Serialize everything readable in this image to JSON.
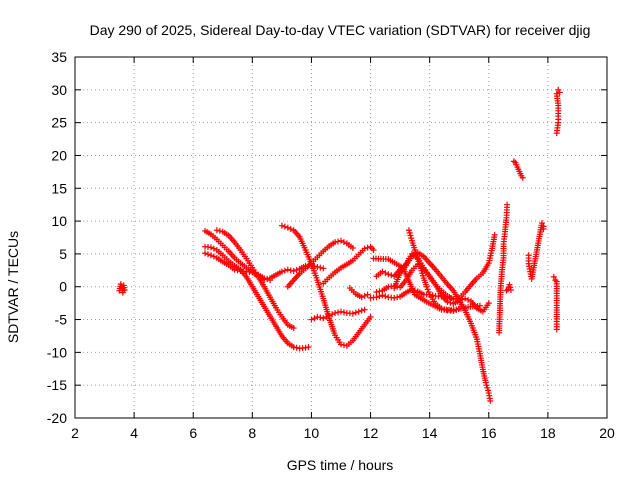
{
  "chart_data": {
    "type": "scatter",
    "title": "Day 290 of 2025, Sidereal Day-to-day VTEC variation (SDTVAR) for receiver djig",
    "xlabel": "GPS time / hours",
    "ylabel": "SDTVAR / TECUs",
    "xlim": [
      2,
      20
    ],
    "ylim": [
      -20,
      35
    ],
    "xticks": [
      2,
      4,
      6,
      8,
      10,
      12,
      14,
      16,
      18,
      20
    ],
    "yticks": [
      -20,
      -15,
      -10,
      -5,
      0,
      5,
      10,
      15,
      20,
      25,
      30,
      35
    ],
    "grid": true,
    "marker": "+",
    "color": "#ff0000",
    "series": [
      {
        "name": "s1",
        "points": [
          [
            3.5,
            -0.6
          ],
          [
            3.55,
            0.4
          ],
          [
            3.6,
            -0.3
          ],
          [
            3.62,
            -0.9
          ],
          [
            3.65,
            0.2
          ],
          [
            3.68,
            -0.5
          ]
        ]
      },
      {
        "name": "s2",
        "points": [
          [
            6.4,
            8.5
          ],
          [
            6.6,
            8.0
          ],
          [
            6.8,
            7.2
          ],
          [
            7.0,
            6.3
          ],
          [
            7.2,
            5.4
          ],
          [
            7.4,
            4.4
          ],
          [
            7.6,
            3.6
          ],
          [
            7.8,
            2.9
          ],
          [
            8.0,
            2.2
          ],
          [
            8.2,
            1.6
          ],
          [
            8.4,
            1.1
          ],
          [
            8.6,
            1.3
          ],
          [
            8.8,
            1.8
          ],
          [
            9.0,
            2.3
          ],
          [
            9.2,
            2.6
          ],
          [
            9.4,
            2.4
          ],
          [
            9.6,
            2.7
          ],
          [
            9.8,
            3.2
          ],
          [
            10.0,
            3.3
          ],
          [
            10.2,
            3.0
          ],
          [
            10.4,
            2.8
          ]
        ]
      },
      {
        "name": "s3",
        "points": [
          [
            6.4,
            5.1
          ],
          [
            6.6,
            4.8
          ],
          [
            6.8,
            4.4
          ],
          [
            7.0,
            3.8
          ],
          [
            7.2,
            3.3
          ],
          [
            7.4,
            2.6
          ],
          [
            7.6,
            2.4
          ],
          [
            7.8,
            2.3
          ],
          [
            8.0,
            2.2
          ],
          [
            8.2,
            1.8
          ],
          [
            8.4,
            1.3
          ],
          [
            8.6,
            1.0
          ]
        ]
      },
      {
        "name": "s4",
        "points": [
          [
            6.4,
            6.1
          ],
          [
            6.6,
            6.0
          ],
          [
            6.8,
            5.6
          ],
          [
            7.0,
            4.8
          ],
          [
            7.2,
            3.9
          ],
          [
            7.4,
            3.2
          ],
          [
            7.6,
            2.6
          ],
          [
            7.8,
            1.5
          ],
          [
            8.0,
            0.0
          ],
          [
            8.2,
            -1.5
          ],
          [
            8.4,
            -3.0
          ],
          [
            8.6,
            -4.5
          ],
          [
            8.8,
            -6.0
          ],
          [
            9.0,
            -7.5
          ],
          [
            9.2,
            -8.6
          ],
          [
            9.4,
            -9.2
          ],
          [
            9.6,
            -9.4
          ],
          [
            9.8,
            -9.3
          ],
          [
            9.9,
            -9.2
          ]
        ]
      },
      {
        "name": "s5",
        "points": [
          [
            6.8,
            8.6
          ],
          [
            7.0,
            8.4
          ],
          [
            7.2,
            7.8
          ],
          [
            7.4,
            6.8
          ],
          [
            7.6,
            5.6
          ],
          [
            7.8,
            4.3
          ],
          [
            8.0,
            2.9
          ],
          [
            8.2,
            1.5
          ],
          [
            8.4,
            0.0
          ],
          [
            8.6,
            -1.6
          ],
          [
            8.8,
            -3.2
          ],
          [
            9.0,
            -4.6
          ],
          [
            9.2,
            -5.8
          ],
          [
            9.4,
            -6.3
          ]
        ]
      },
      {
        "name": "s6",
        "points": [
          [
            9.0,
            9.3
          ],
          [
            9.2,
            9.0
          ],
          [
            9.4,
            8.6
          ],
          [
            9.6,
            7.6
          ],
          [
            9.8,
            5.6
          ],
          [
            10.0,
            3.5
          ],
          [
            10.2,
            1.0
          ],
          [
            10.4,
            -1.8
          ],
          [
            10.6,
            -4.8
          ],
          [
            10.8,
            -7.4
          ],
          [
            11.0,
            -8.8
          ],
          [
            11.2,
            -9.0
          ],
          [
            11.4,
            -8.2
          ],
          [
            11.6,
            -7.0
          ],
          [
            11.8,
            -5.8
          ],
          [
            12.0,
            -4.6
          ]
        ]
      },
      {
        "name": "s7",
        "points": [
          [
            9.2,
            0.0
          ],
          [
            9.4,
            1.0
          ],
          [
            9.6,
            2.0
          ],
          [
            9.8,
            2.8
          ],
          [
            10.0,
            3.6
          ],
          [
            10.2,
            4.5
          ],
          [
            10.4,
            5.4
          ],
          [
            10.6,
            6.2
          ],
          [
            10.8,
            6.8
          ],
          [
            11.0,
            7.0
          ],
          [
            11.2,
            6.6
          ],
          [
            11.4,
            5.9
          ]
        ]
      },
      {
        "name": "s8",
        "points": [
          [
            10.0,
            -5.0
          ],
          [
            10.2,
            -4.6
          ],
          [
            10.4,
            -4.8
          ],
          [
            10.6,
            -4.4
          ],
          [
            10.8,
            -4.0
          ],
          [
            11.0,
            -3.8
          ],
          [
            11.2,
            -4.0
          ],
          [
            11.4,
            -4.1
          ],
          [
            11.6,
            -3.8
          ],
          [
            11.8,
            -3.5
          ]
        ]
      },
      {
        "name": "s9",
        "points": [
          [
            10.4,
            0.5
          ],
          [
            10.6,
            1.4
          ],
          [
            10.8,
            2.2
          ],
          [
            11.0,
            2.9
          ],
          [
            11.2,
            3.4
          ],
          [
            11.4,
            4.0
          ],
          [
            11.6,
            4.9
          ],
          [
            11.8,
            5.8
          ],
          [
            12.0,
            6.1
          ],
          [
            12.1,
            5.6
          ]
        ]
      },
      {
        "name": "s10",
        "points": [
          [
            11.3,
            -0.2
          ],
          [
            11.5,
            -1.1
          ],
          [
            11.7,
            -1.6
          ],
          [
            11.9,
            -1.2
          ]
        ]
      },
      {
        "name": "s11",
        "points": [
          [
            12.0,
            -1.7
          ],
          [
            12.2,
            -1.6
          ],
          [
            12.4,
            -1.3
          ],
          [
            12.6,
            -1.6
          ],
          [
            12.8,
            -1.7
          ],
          [
            13.0,
            -1.5
          ],
          [
            13.2,
            -0.9
          ],
          [
            13.4,
            -0.4
          ],
          [
            13.6,
            -0.7
          ],
          [
            13.8,
            -1.2
          ],
          [
            14.0,
            -1.2
          ],
          [
            14.2,
            -1.4
          ],
          [
            14.4,
            -1.5
          ],
          [
            14.6,
            -1.6
          ],
          [
            14.8,
            -1.9
          ],
          [
            15.0,
            -1.7
          ],
          [
            15.2,
            -0.8
          ],
          [
            15.4,
            0.3
          ],
          [
            15.6,
            1.3
          ],
          [
            15.8,
            2.1
          ],
          [
            16.0,
            3.6
          ],
          [
            16.1,
            5.5
          ],
          [
            16.2,
            7.9
          ]
        ]
      },
      {
        "name": "s12",
        "points": [
          [
            12.2,
            1.6
          ],
          [
            12.4,
            2.3
          ],
          [
            12.6,
            1.9
          ],
          [
            12.8,
            1.6
          ],
          [
            13.0,
            2.6
          ],
          [
            13.2,
            3.4
          ],
          [
            13.4,
            4.6
          ],
          [
            13.6,
            5.2
          ],
          [
            13.8,
            4.6
          ],
          [
            14.0,
            3.6
          ],
          [
            14.2,
            2.6
          ],
          [
            14.4,
            1.5
          ],
          [
            14.6,
            0.4
          ],
          [
            14.8,
            -0.6
          ],
          [
            15.0,
            -2.1
          ],
          [
            15.2,
            -3.6
          ],
          [
            15.4,
            -5.6
          ],
          [
            15.6,
            -8.0
          ],
          [
            15.7,
            -10.2
          ],
          [
            15.8,
            -12.6
          ],
          [
            15.9,
            -14.6
          ],
          [
            16.0,
            -16.2
          ],
          [
            16.05,
            -17.4
          ]
        ]
      },
      {
        "name": "s13",
        "points": [
          [
            12.2,
            -0.8
          ],
          [
            12.4,
            -0.6
          ],
          [
            12.6,
            0.0
          ],
          [
            12.8,
            0.1
          ],
          [
            13.0,
            -0.1
          ],
          [
            13.2,
            1.0
          ],
          [
            13.4,
            2.5
          ],
          [
            13.6,
            3.4
          ],
          [
            13.8,
            2.7
          ],
          [
            14.0,
            1.6
          ],
          [
            14.2,
            0.3
          ],
          [
            14.4,
            -1.3
          ],
          [
            14.6,
            -2.3
          ],
          [
            14.8,
            -2.6
          ],
          [
            15.0,
            -2.1
          ],
          [
            15.2,
            -1.8
          ],
          [
            15.4,
            -2.2
          ],
          [
            15.6,
            -3.3
          ],
          [
            15.8,
            -3.8
          ],
          [
            16.0,
            -2.5
          ]
        ]
      },
      {
        "name": "s14",
        "points": [
          [
            12.8,
            -0.2
          ],
          [
            13.0,
            2.1
          ],
          [
            13.2,
            3.2
          ],
          [
            13.3,
            4.3
          ],
          [
            13.4,
            5.0
          ],
          [
            13.6,
            4.3
          ],
          [
            13.8,
            2.9
          ],
          [
            14.0,
            1.5
          ],
          [
            14.2,
            0.3
          ],
          [
            14.4,
            -0.6
          ],
          [
            14.6,
            -1.4
          ],
          [
            14.8,
            -1.9
          ]
        ]
      },
      {
        "name": "s15",
        "points": [
          [
            13.3,
            8.6
          ],
          [
            13.4,
            7.0
          ],
          [
            13.5,
            5.6
          ],
          [
            13.6,
            4.2
          ],
          [
            13.7,
            2.8
          ],
          [
            13.8,
            1.3
          ],
          [
            13.9,
            0.0
          ],
          [
            14.0,
            -1.2
          ],
          [
            14.2,
            -2.6
          ],
          [
            14.4,
            -3.3
          ],
          [
            14.6,
            -3.6
          ],
          [
            14.8,
            -3.7
          ],
          [
            15.0,
            -3.3
          ]
        ]
      },
      {
        "name": "s16",
        "points": [
          [
            12.1,
            4.3
          ],
          [
            12.6,
            4.2
          ],
          [
            13.1,
            2.9
          ],
          [
            13.5,
            -1.2
          ],
          [
            13.9,
            -2.3
          ],
          [
            14.4,
            -3.5
          ],
          [
            14.9,
            -3.5
          ],
          [
            15.3,
            -3.1
          ],
          [
            15.7,
            -2.9
          ]
        ]
      },
      {
        "name": "s17",
        "points": [
          [
            16.35,
            -7.0
          ],
          [
            16.4,
            -0.2
          ],
          [
            16.45,
            2.6
          ],
          [
            16.5,
            4.4
          ],
          [
            16.5,
            6.5
          ],
          [
            16.55,
            8.4
          ],
          [
            16.6,
            10.5
          ],
          [
            16.62,
            12.5
          ],
          [
            16.6,
            -0.6
          ],
          [
            16.65,
            -0.4
          ],
          [
            16.7,
            0.3
          ],
          [
            16.75,
            -0.5
          ]
        ]
      },
      {
        "name": "s18",
        "points": [
          [
            16.85,
            19.1
          ],
          [
            16.9,
            18.9
          ],
          [
            17.1,
            16.9
          ],
          [
            17.15,
            16.6
          ],
          [
            17.35,
            4.8
          ],
          [
            17.35,
            3.5
          ],
          [
            17.4,
            2.3
          ],
          [
            17.45,
            1.2
          ],
          [
            17.8,
            9.7
          ],
          [
            17.85,
            9.2
          ],
          [
            17.85,
            8.8
          ]
        ]
      },
      {
        "name": "s19",
        "points": [
          [
            18.2,
            1.5
          ],
          [
            18.25,
            1.0
          ],
          [
            18.3,
            0.8
          ],
          [
            18.3,
            -3.2
          ],
          [
            18.3,
            -4.9
          ],
          [
            18.3,
            -6.5
          ],
          [
            18.3,
            23.4
          ],
          [
            18.35,
            25.0
          ],
          [
            18.35,
            26.0
          ],
          [
            18.35,
            27.6
          ],
          [
            18.3,
            29.4
          ],
          [
            18.35,
            30.0
          ],
          [
            18.4,
            29.6
          ]
        ]
      }
    ]
  }
}
